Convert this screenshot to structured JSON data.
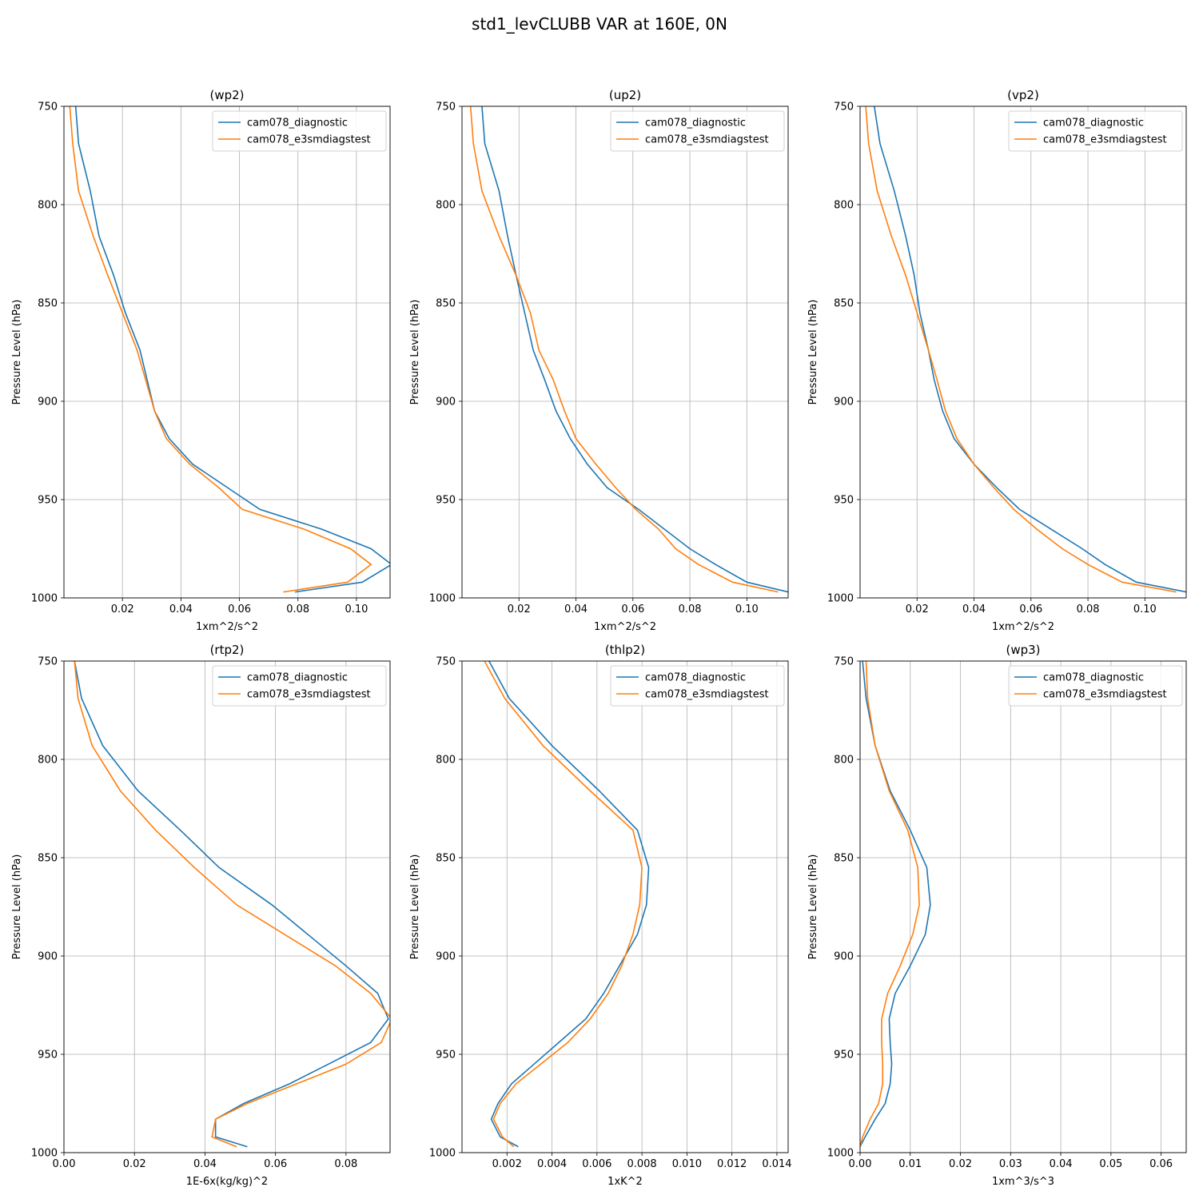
{
  "figure": {
    "title": "std1_levCLUBB VAR at 160E, 0N"
  },
  "chart_data": [
    {
      "type": "line",
      "title": "(wp2)",
      "xlabel": "1xm^2/s^2",
      "ylabel": "Pressure Level (hPa)",
      "xlim": [
        0.0,
        0.1115
      ],
      "ylim": [
        1000,
        750
      ],
      "xticks": [
        0.02,
        0.04,
        0.06,
        0.08,
        0.1
      ],
      "xtick_labels": [
        "0.02",
        "0.04",
        "0.06",
        "0.08",
        "0.10"
      ],
      "yticks": [
        750,
        800,
        850,
        900,
        950,
        1000
      ],
      "grid": true,
      "legend": "upper right",
      "series": [
        {
          "name": "cam078_diagnostic",
          "color": "#1f77b4",
          "x": [
            0.079,
            0.102,
            0.112,
            0.105,
            0.088,
            0.067,
            0.056,
            0.044,
            0.036,
            0.031,
            0.026,
            0.021,
            0.017,
            0.012,
            0.009,
            0.005,
            0.004
          ],
          "y": [
            997,
            992,
            983,
            975,
            965,
            955,
            944,
            932,
            919,
            905,
            874,
            855,
            836,
            816,
            793,
            769,
            750
          ]
        },
        {
          "name": "cam078_e3smdiagstest",
          "color": "#ff7f0e",
          "x": [
            0.075,
            0.097,
            0.105,
            0.098,
            0.082,
            0.061,
            0.053,
            0.043,
            0.035,
            0.031,
            0.025,
            0.02,
            0.015,
            0.01,
            0.005,
            0.003,
            0.002
          ],
          "y": [
            997,
            992,
            983,
            975,
            965,
            955,
            944,
            932,
            919,
            905,
            874,
            855,
            836,
            816,
            793,
            769,
            750
          ]
        }
      ]
    },
    {
      "type": "line",
      "title": "(up2)",
      "xlabel": "1xm^2/s^2",
      "ylabel": "Pressure Level (hPa)",
      "xlim": [
        0.0,
        0.1145
      ],
      "ylim": [
        1000,
        750
      ],
      "xticks": [
        0.02,
        0.04,
        0.06,
        0.08,
        0.1
      ],
      "xtick_labels": [
        "0.02",
        "0.04",
        "0.06",
        "0.08",
        "0.10"
      ],
      "yticks": [
        750,
        800,
        850,
        900,
        950,
        1000
      ],
      "grid": true,
      "legend": "upper right",
      "series": [
        {
          "name": "cam078_diagnostic",
          "color": "#1f77b4",
          "x": [
            0.1145,
            0.1,
            0.089,
            0.08,
            0.071,
            0.062,
            0.051,
            0.044,
            0.038,
            0.033,
            0.029,
            0.025,
            0.022,
            0.019,
            0.016,
            0.013,
            0.008,
            0.007
          ],
          "y": [
            997,
            992,
            983,
            975,
            965,
            955,
            944,
            932,
            919,
            905,
            889,
            874,
            855,
            836,
            816,
            793,
            769,
            750
          ]
        },
        {
          "name": "cam078_e3smdiagstest",
          "color": "#ff7f0e",
          "x": [
            0.111,
            0.095,
            0.083,
            0.075,
            0.069,
            0.061,
            0.054,
            0.047,
            0.04,
            0.036,
            0.032,
            0.027,
            0.024,
            0.019,
            0.013,
            0.007,
            0.004,
            0.003
          ],
          "y": [
            997,
            992,
            983,
            975,
            965,
            955,
            944,
            932,
            919,
            905,
            889,
            874,
            855,
            836,
            816,
            793,
            769,
            750
          ]
        }
      ]
    },
    {
      "type": "line",
      "title": "(vp2)",
      "xlabel": "1xm^2/s^2",
      "ylabel": "Pressure Level (hPa)",
      "xlim": [
        0.0,
        0.1145
      ],
      "ylim": [
        1000,
        750
      ],
      "xticks": [
        0.02,
        0.04,
        0.06,
        0.08,
        0.1
      ],
      "xtick_labels": [
        "0.02",
        "0.04",
        "0.06",
        "0.08",
        "0.10"
      ],
      "yticks": [
        750,
        800,
        850,
        900,
        950,
        1000
      ],
      "grid": true,
      "legend": "upper right",
      "series": [
        {
          "name": "cam078_diagnostic",
          "color": "#1f77b4",
          "x": [
            0.1145,
            0.097,
            0.086,
            0.078,
            0.067,
            0.056,
            0.048,
            0.04,
            0.033,
            0.029,
            0.026,
            0.024,
            0.021,
            0.019,
            0.016,
            0.012,
            0.007,
            0.005
          ],
          "y": [
            997,
            992,
            983,
            975,
            965,
            955,
            944,
            932,
            919,
            905,
            889,
            874,
            855,
            836,
            816,
            793,
            769,
            750
          ]
        },
        {
          "name": "cam078_e3smdiagstest",
          "color": "#ff7f0e",
          "x": [
            0.111,
            0.092,
            0.08,
            0.071,
            0.062,
            0.054,
            0.047,
            0.04,
            0.034,
            0.03,
            0.027,
            0.024,
            0.02,
            0.016,
            0.011,
            0.006,
            0.003,
            0.002
          ],
          "y": [
            997,
            992,
            983,
            975,
            965,
            955,
            944,
            932,
            919,
            905,
            889,
            874,
            855,
            836,
            816,
            793,
            769,
            750
          ]
        }
      ]
    },
    {
      "type": "line",
      "title": "(rtp2)",
      "xlabel": "1E-6x(kg/kg)^2",
      "ylabel": "Pressure Level (hPa)",
      "xlim": [
        0.0,
        0.0925
      ],
      "ylim": [
        1000,
        750
      ],
      "xticks": [
        0.0,
        0.02,
        0.04,
        0.06,
        0.08
      ],
      "xtick_labels": [
        "0.00",
        "0.02",
        "0.04",
        "0.06",
        "0.08"
      ],
      "yticks": [
        750,
        800,
        850,
        900,
        950,
        1000
      ],
      "grid": true,
      "legend": "upper right",
      "series": [
        {
          "name": "cam078_diagnostic",
          "color": "#1f77b4",
          "x": [
            0.052,
            0.043,
            0.043,
            0.051,
            0.064,
            0.075,
            0.087,
            0.092,
            0.089,
            0.08,
            0.059,
            0.044,
            0.033,
            0.021,
            0.011,
            0.005,
            0.003
          ],
          "y": [
            997,
            992,
            983,
            975,
            965,
            955,
            944,
            932,
            919,
            905,
            874,
            855,
            836,
            816,
            793,
            769,
            750
          ]
        },
        {
          "name": "cam078_e3smdiagstest",
          "color": "#ff7f0e",
          "x": [
            0.049,
            0.042,
            0.043,
            0.052,
            0.066,
            0.08,
            0.09,
            0.093,
            0.087,
            0.077,
            0.049,
            0.037,
            0.026,
            0.016,
            0.008,
            0.004,
            0.003
          ],
          "y": [
            997,
            992,
            983,
            975,
            965,
            955,
            944,
            932,
            919,
            905,
            874,
            855,
            836,
            816,
            793,
            769,
            750
          ]
        }
      ]
    },
    {
      "type": "line",
      "title": "(thlp2)",
      "xlabel": "1xK^2",
      "ylabel": "Pressure Level (hPa)",
      "xlim": [
        0.0,
        0.0145
      ],
      "ylim": [
        1000,
        750
      ],
      "xticks": [
        0.002,
        0.004,
        0.006,
        0.008,
        0.01,
        0.012,
        0.014
      ],
      "xtick_labels": [
        "0.002",
        "0.004",
        "0.006",
        "0.008",
        "0.010",
        "0.012",
        "0.014"
      ],
      "yticks": [
        750,
        800,
        850,
        900,
        950,
        1000
      ],
      "grid": true,
      "legend": "upper right",
      "series": [
        {
          "name": "cam078_diagnostic",
          "color": "#1f77b4",
          "x": [
            0.0025,
            0.0017,
            0.0013,
            0.0016,
            0.0022,
            0.0032,
            0.0043,
            0.0055,
            0.0063,
            0.007,
            0.0078,
            0.0082,
            0.0083,
            0.0078,
            0.0061,
            0.004,
            0.0021,
            0.0012
          ],
          "y": [
            997,
            992,
            983,
            975,
            965,
            955,
            944,
            932,
            919,
            905,
            889,
            874,
            855,
            836,
            816,
            793,
            769,
            750
          ]
        },
        {
          "name": "cam078_e3smdiagstest",
          "color": "#ff7f0e",
          "x": [
            0.0023,
            0.0018,
            0.0014,
            0.0017,
            0.0024,
            0.0035,
            0.0047,
            0.0057,
            0.0065,
            0.0071,
            0.0076,
            0.0079,
            0.008,
            0.0076,
            0.0057,
            0.0036,
            0.0019,
            0.001
          ],
          "y": [
            997,
            992,
            983,
            975,
            965,
            955,
            944,
            932,
            919,
            905,
            889,
            874,
            855,
            836,
            816,
            793,
            769,
            750
          ]
        }
      ]
    },
    {
      "type": "line",
      "title": "(wp3)",
      "xlabel": "1xm^3/s^3",
      "ylabel": "Pressure Level (hPa)",
      "xlim": [
        0.0,
        0.065
      ],
      "ylim": [
        1000,
        750
      ],
      "xticks": [
        0.0,
        0.01,
        0.02,
        0.03,
        0.04,
        0.05,
        0.06
      ],
      "xtick_labels": [
        "0.00",
        "0.01",
        "0.02",
        "0.03",
        "0.04",
        "0.05",
        "0.06"
      ],
      "yticks": [
        750,
        800,
        850,
        900,
        950,
        1000
      ],
      "grid": true,
      "legend": "upper right",
      "series": [
        {
          "name": "cam078_diagnostic",
          "color": "#1f77b4",
          "x": [
            0.0,
            0.001,
            0.003,
            0.005,
            0.006,
            0.0063,
            0.006,
            0.0058,
            0.007,
            0.01,
            0.013,
            0.014,
            0.0133,
            0.01,
            0.006,
            0.003,
            0.0012,
            0.0005
          ],
          "y": [
            997,
            992,
            983,
            975,
            965,
            955,
            944,
            932,
            919,
            905,
            889,
            874,
            855,
            836,
            816,
            793,
            769,
            750
          ]
        },
        {
          "name": "cam078_e3smdiagstest",
          "color": "#ff7f0e",
          "x": [
            0.0,
            0.0005,
            0.002,
            0.0037,
            0.0045,
            0.0045,
            0.0043,
            0.0043,
            0.0055,
            0.008,
            0.0105,
            0.0118,
            0.0115,
            0.0095,
            0.0058,
            0.003,
            0.0015,
            0.0012
          ],
          "y": [
            997,
            992,
            983,
            975,
            965,
            955,
            944,
            932,
            919,
            905,
            889,
            874,
            855,
            836,
            816,
            793,
            769,
            750
          ]
        }
      ]
    }
  ]
}
